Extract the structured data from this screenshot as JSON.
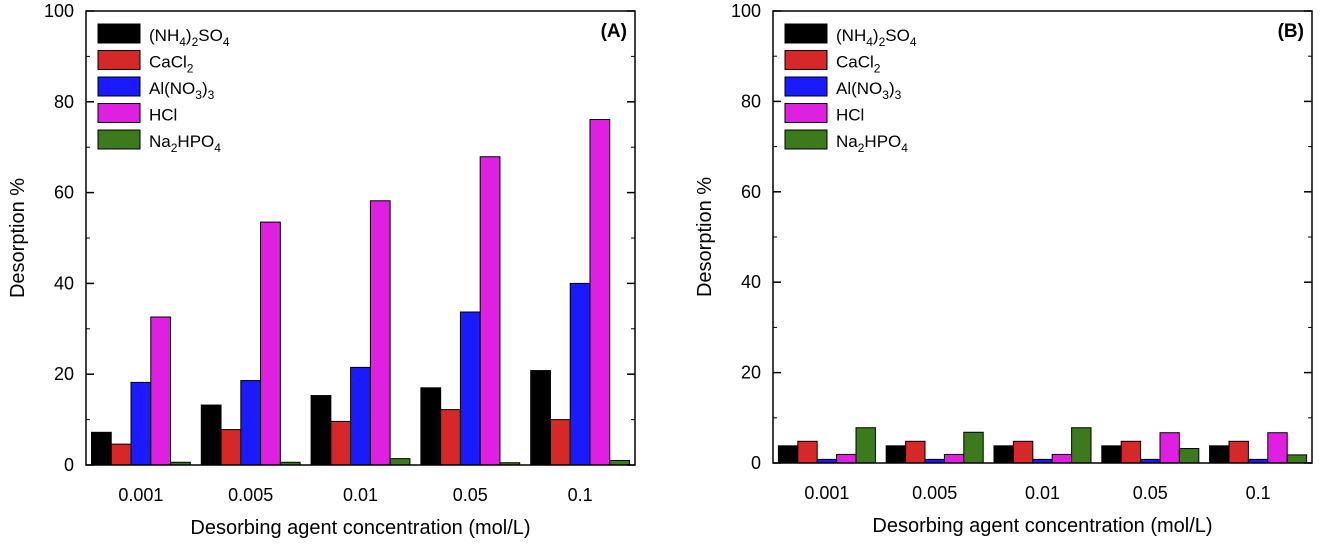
{
  "chart_data": [
    {
      "type": "bar",
      "panel_label": "(A)",
      "categories": [
        "0.001",
        "0.005",
        "0.01",
        "0.05",
        "0.1"
      ],
      "series": [
        {
          "name": "(NH4)2SO4",
          "color": "#000000",
          "values": [
            7.2,
            13.2,
            15.3,
            17.0,
            20.8
          ]
        },
        {
          "name": "CaCl2",
          "color": "#d62828",
          "values": [
            4.6,
            7.8,
            9.6,
            12.2,
            10.0
          ]
        },
        {
          "name": "Al(NO3)3",
          "color": "#1a1aff",
          "values": [
            18.2,
            18.6,
            21.5,
            33.7,
            40.0
          ]
        },
        {
          "name": "HCl",
          "color": "#e020e0",
          "values": [
            32.6,
            53.5,
            58.2,
            67.9,
            76.1
          ]
        },
        {
          "name": "Na2HPO4",
          "color": "#3d7a1e",
          "values": [
            0.6,
            0.6,
            1.4,
            0.5,
            1.0
          ]
        }
      ],
      "xlabel": "Desorbing agent concentration (mol/L)",
      "ylabel": "Desorption %",
      "ylim": [
        0,
        100
      ],
      "yticks": [
        "0",
        "20",
        "40",
        "60",
        "80",
        "100"
      ],
      "legend_position": "top-left"
    },
    {
      "type": "bar",
      "panel_label": "(B)",
      "categories": [
        "0.001",
        "0.005",
        "0.01",
        "0.05",
        "0.1"
      ],
      "series": [
        {
          "name": "(NH4)2SO4",
          "color": "#000000",
          "values": [
            3.8,
            3.8,
            3.8,
            3.8,
            3.8
          ]
        },
        {
          "name": "CaCl2",
          "color": "#d62828",
          "values": [
            4.8,
            4.8,
            4.8,
            4.8,
            4.8
          ]
        },
        {
          "name": "Al(NO3)3",
          "color": "#1a1aff",
          "values": [
            0.8,
            0.8,
            0.8,
            0.8,
            0.8
          ]
        },
        {
          "name": "HCl",
          "color": "#e020e0",
          "values": [
            1.9,
            1.9,
            1.9,
            6.7,
            6.7
          ]
        },
        {
          "name": "Na2HPO4",
          "color": "#3d7a1e",
          "values": [
            7.8,
            6.8,
            7.8,
            3.2,
            1.8
          ]
        }
      ],
      "xlabel": "Desorbing agent concentration (mol/L)",
      "ylabel": "Desorption %",
      "ylim": [
        0,
        100
      ],
      "yticks": [
        "0",
        "20",
        "40",
        "60",
        "80",
        "100"
      ],
      "legend_position": "top-left"
    }
  ],
  "legend_labels": [
    {
      "base": "(NH",
      "sub1": "4",
      "mid": ")",
      "sub2": "2",
      "tail": "SO",
      "sub3": "4"
    },
    {
      "base": "CaCl",
      "sub1": "2"
    },
    {
      "base": "Al(NO",
      "sub1": "3",
      "mid": ")",
      "sub2": "3"
    },
    {
      "base": "HCl"
    },
    {
      "base": "Na",
      "sub1": "2",
      "mid": "HPO",
      "sub2": "4"
    }
  ]
}
